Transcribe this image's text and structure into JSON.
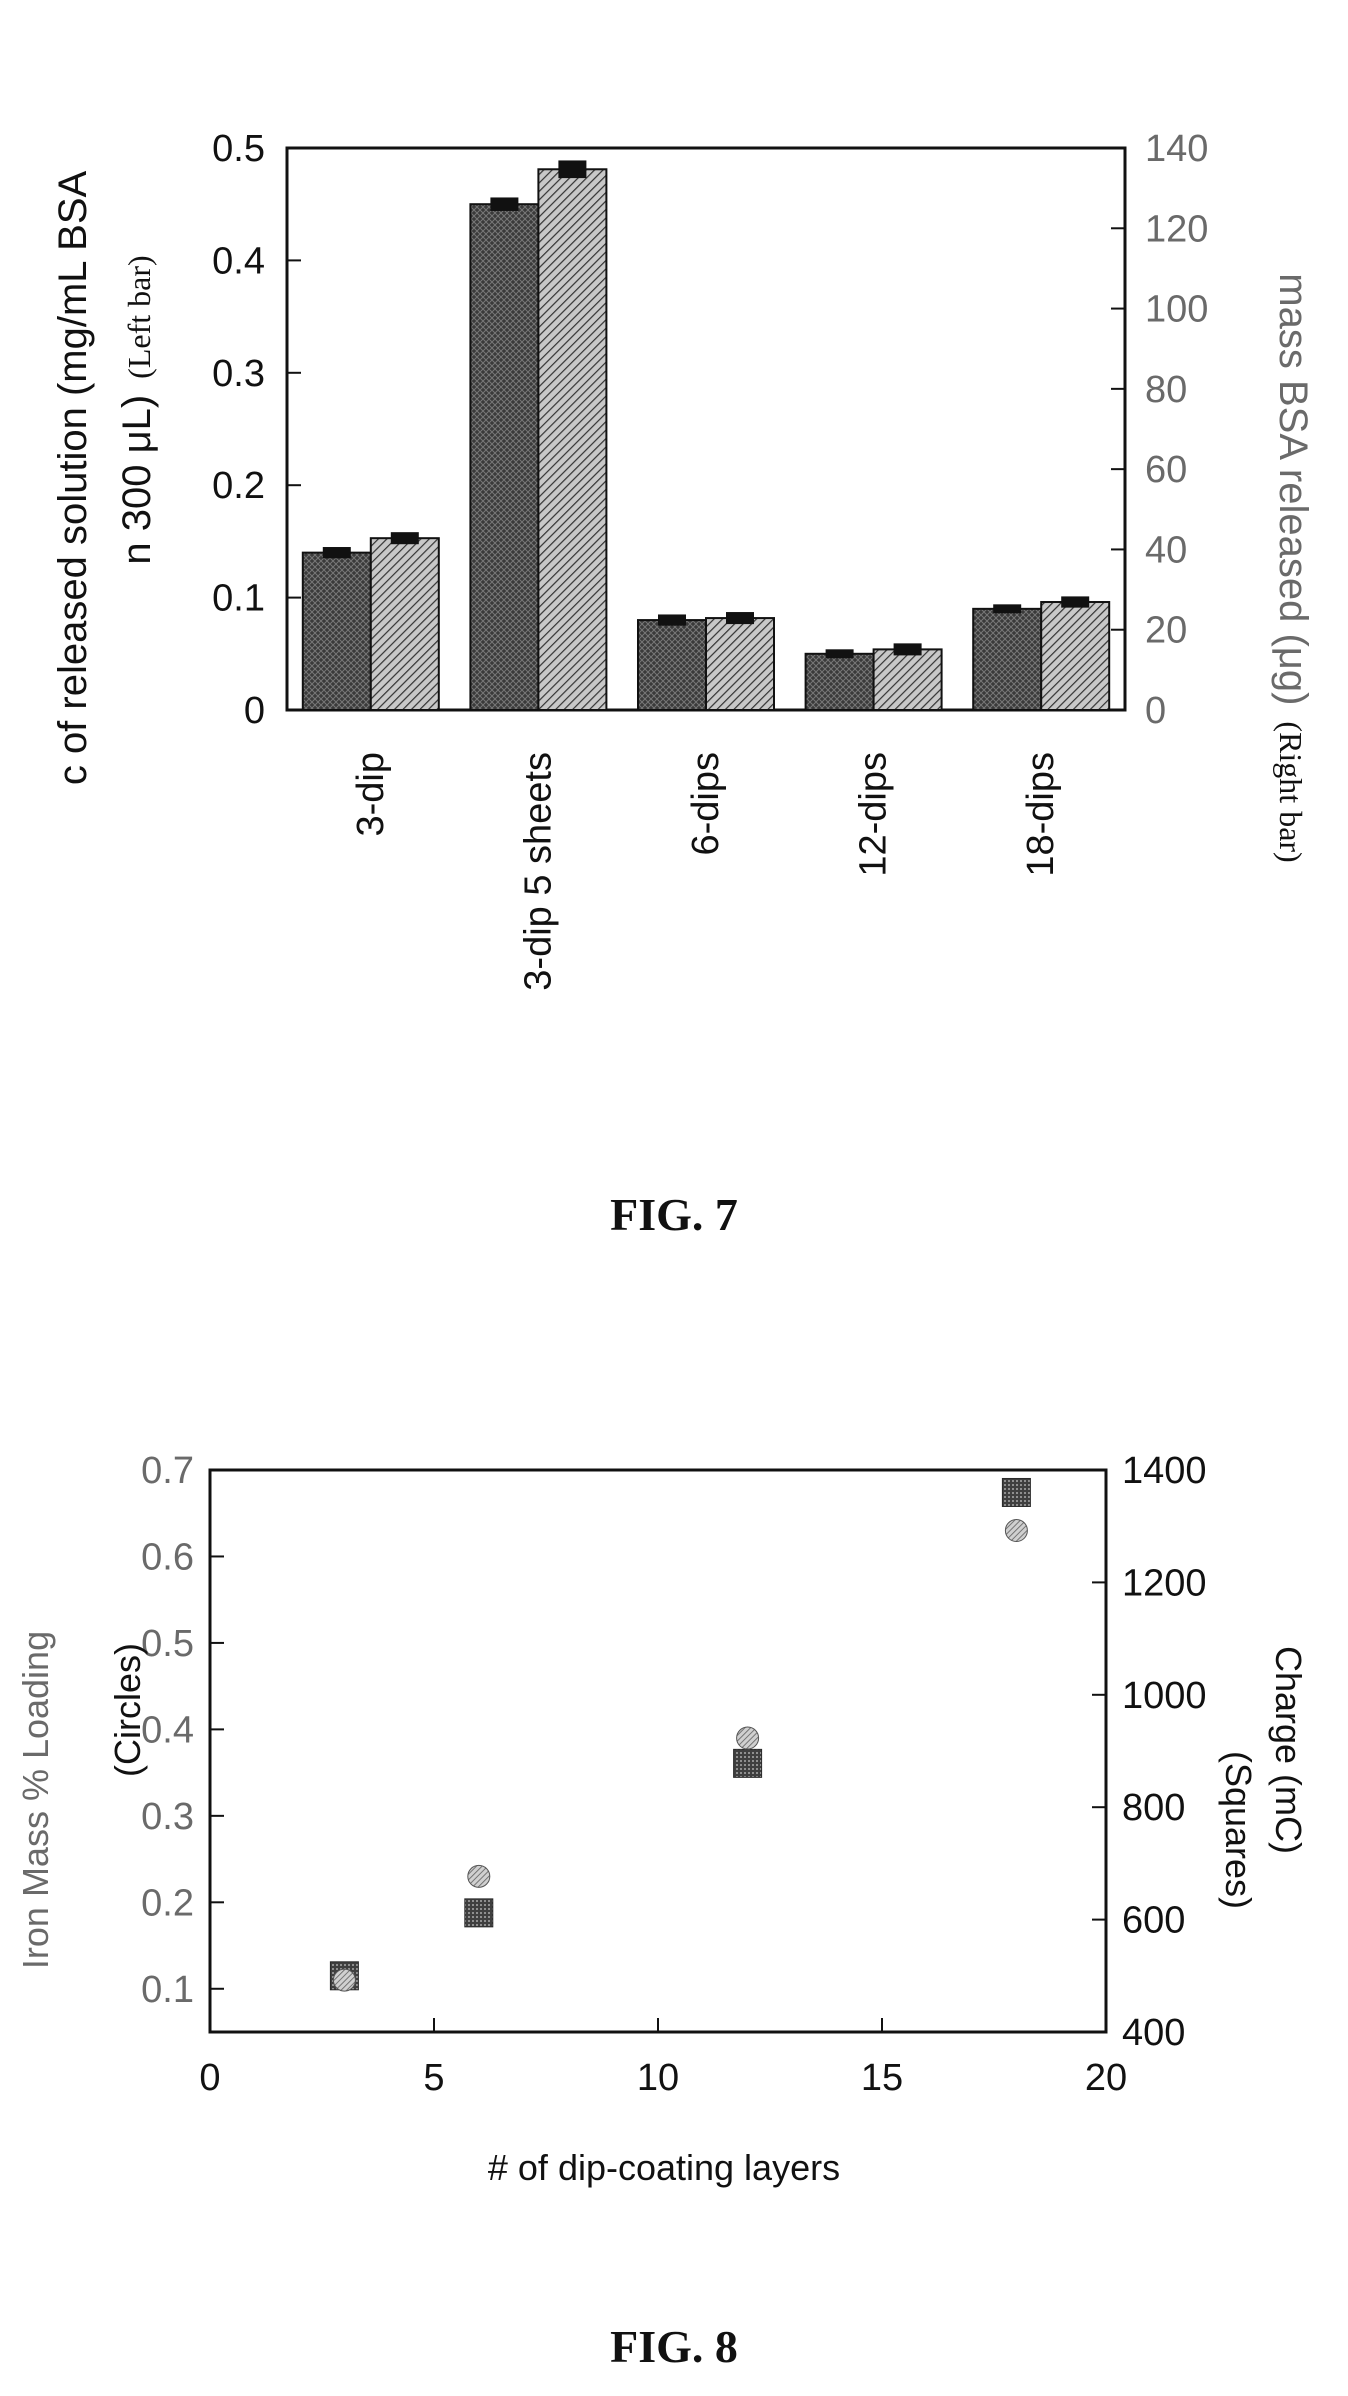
{
  "chart_data": [
    {
      "type": "bar",
      "figure_label": "FIG. 7",
      "categories": [
        "3-dip",
        "3-dip 5 sheets",
        "6-dips",
        "12-dips",
        "18-dips"
      ],
      "ylabel_left_line1": "c of released solution (mg/mL BSA",
      "ylabel_left_line2": "n 300 μL)",
      "ylabel_left_note": "(Left bar)",
      "ylabel_right_main": "mass BSA released (μg)",
      "ylabel_right_note": "(Right bar)",
      "ylim_left": [
        0,
        0.5
      ],
      "ylim_right": [
        0,
        140
      ],
      "yticks_left": [
        "0",
        "0.1",
        "0.2",
        "0.3",
        "0.4",
        "0.5"
      ],
      "yticks_right": [
        "0",
        "20",
        "40",
        "60",
        "80",
        "100",
        "120",
        "140"
      ],
      "series": [
        {
          "axis": "left",
          "values": [
            0.14,
            0.45,
            0.08,
            0.05,
            0.09
          ],
          "errors": [
            0.005,
            0.006,
            0.005,
            0.004,
            0.004
          ]
        },
        {
          "axis": "right",
          "values": [
            42.8,
            134.7,
            22.9,
            15.1,
            26.9
          ],
          "errors": [
            1.5,
            2.2,
            1.5,
            1.5,
            1.4
          ]
        }
      ],
      "colors": {
        "left_bar": "#3a3a3a",
        "right_bar": "#8a8a8a"
      }
    },
    {
      "type": "scatter",
      "figure_label": "FIG. 8",
      "xlabel": "# of dip-coating layers",
      "xlim": [
        0,
        20
      ],
      "xticks": [
        "0",
        "5",
        "10",
        "15",
        "20"
      ],
      "ylabel_left_main": "Iron Mass % Loading",
      "ylabel_left_note": "(Circles)",
      "ylabel_right_main": "Charge (mC)",
      "ylabel_right_note": "(Squares)",
      "ylim_left": [
        0.05,
        0.7
      ],
      "ylim_right": [
        400,
        1400
      ],
      "yticks_left": [
        "0.1",
        "0.2",
        "0.3",
        "0.4",
        "0.5",
        "0.6",
        "0.7"
      ],
      "yticks_right": [
        "400",
        "600",
        "800",
        "1000",
        "1200",
        "1400"
      ],
      "series": [
        {
          "marker": "circle",
          "axis": "left",
          "x": [
            3,
            6,
            12,
            18
          ],
          "y": [
            0.11,
            0.23,
            0.39,
            0.63
          ]
        },
        {
          "marker": "square",
          "axis": "right",
          "x": [
            3,
            6,
            12,
            18
          ],
          "y": [
            500,
            612,
            878,
            1360
          ]
        }
      ],
      "colors": {
        "circles": "#8a8a8a",
        "squares": "#4a4a4a"
      }
    }
  ]
}
